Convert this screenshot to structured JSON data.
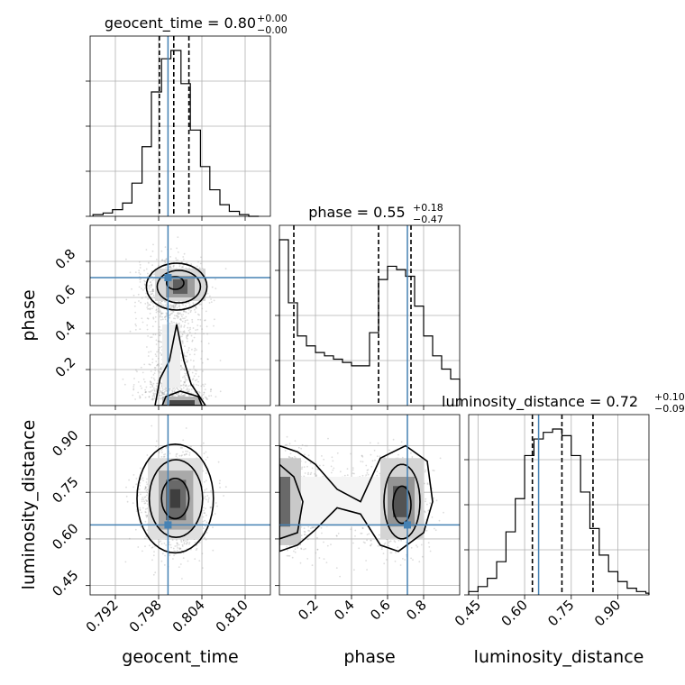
{
  "colors": {
    "truth": "#4682b4",
    "contour": "#000000",
    "grid": "#b0b0b0",
    "scatter": "#9a9a9a"
  },
  "chart_data": {
    "type": "corner",
    "parameters": [
      "geocent_time",
      "phase",
      "luminosity_distance"
    ],
    "truth_values": {
      "geocent_time": 0.7993,
      "phase": 0.71,
      "luminosity_distance": 0.645
    },
    "diagonal": [
      {
        "parameter": "geocent_time",
        "title_value": "0.80",
        "title_plus": "+0.00",
        "title_minus": "−0.00",
        "x_range": [
          0.7885,
          0.8135
        ],
        "quantiles": [
          0.7981,
          0.8001,
          0.8022
        ],
        "bin_edges": [
          0.7889,
          0.7903,
          0.7916,
          0.793,
          0.7943,
          0.7957,
          0.797,
          0.7984,
          0.7997,
          0.8011,
          0.8024,
          0.8038,
          0.8051,
          0.8065,
          0.8078,
          0.8092,
          0.8105,
          0.8119
        ],
        "counts": [
          0.01,
          0.02,
          0.04,
          0.08,
          0.2,
          0.42,
          0.75,
          0.95,
          1.0,
          0.8,
          0.52,
          0.3,
          0.16,
          0.07,
          0.03,
          0.01,
          0.0
        ]
      },
      {
        "parameter": "phase",
        "title_value": "0.55",
        "title_plus": "+0.18",
        "title_minus": "−0.47",
        "x_range": [
          0.0,
          1.0
        ],
        "quantiles": [
          0.08,
          0.55,
          0.73
        ],
        "bin_edges": [
          0.0,
          0.05,
          0.1,
          0.15,
          0.2,
          0.25,
          0.3,
          0.35,
          0.4,
          0.45,
          0.5,
          0.55,
          0.6,
          0.65,
          0.7,
          0.75,
          0.8,
          0.85,
          0.9,
          0.95,
          1.0
        ],
        "counts": [
          1.0,
          0.62,
          0.42,
          0.36,
          0.32,
          0.3,
          0.28,
          0.26,
          0.24,
          0.24,
          0.44,
          0.76,
          0.84,
          0.82,
          0.78,
          0.6,
          0.42,
          0.3,
          0.22,
          0.16
        ]
      },
      {
        "parameter": "luminosity_distance",
        "title_value": "0.72",
        "title_plus": "+0.10",
        "title_minus": "−0.09",
        "x_range": [
          0.42,
          1.0
        ],
        "quantiles": [
          0.625,
          0.72,
          0.82
        ],
        "bin_edges": [
          0.42,
          0.45,
          0.48,
          0.51,
          0.54,
          0.57,
          0.6,
          0.63,
          0.66,
          0.69,
          0.72,
          0.75,
          0.78,
          0.81,
          0.84,
          0.87,
          0.9,
          0.93,
          0.96,
          0.99,
          1.0
        ],
        "counts": [
          0.02,
          0.05,
          0.1,
          0.2,
          0.38,
          0.58,
          0.84,
          0.94,
          0.98,
          1.0,
          0.96,
          0.84,
          0.62,
          0.4,
          0.24,
          0.14,
          0.08,
          0.04,
          0.02,
          0.01
        ]
      }
    ],
    "axes": {
      "geocent_time": {
        "range": [
          0.7885,
          0.8135
        ],
        "ticks": [
          0.792,
          0.798,
          0.804,
          0.81
        ],
        "tick_labels": [
          "0.792",
          "0.798",
          "0.804",
          "0.810"
        ],
        "label": "geocent_time"
      },
      "phase": {
        "range": [
          0.0,
          1.0
        ],
        "ticks": [
          0.2,
          0.4,
          0.6,
          0.8
        ],
        "tick_labels": [
          "0.2",
          "0.4",
          "0.6",
          "0.8"
        ],
        "label": "phase"
      },
      "luminosity_distance": {
        "range": [
          0.42,
          1.0
        ],
        "ticks": [
          0.45,
          0.6,
          0.75,
          0.9
        ],
        "tick_labels": [
          "0.45",
          "0.60",
          "0.75",
          "0.90"
        ],
        "label": "luminosity_distance"
      }
    },
    "grid": true
  }
}
